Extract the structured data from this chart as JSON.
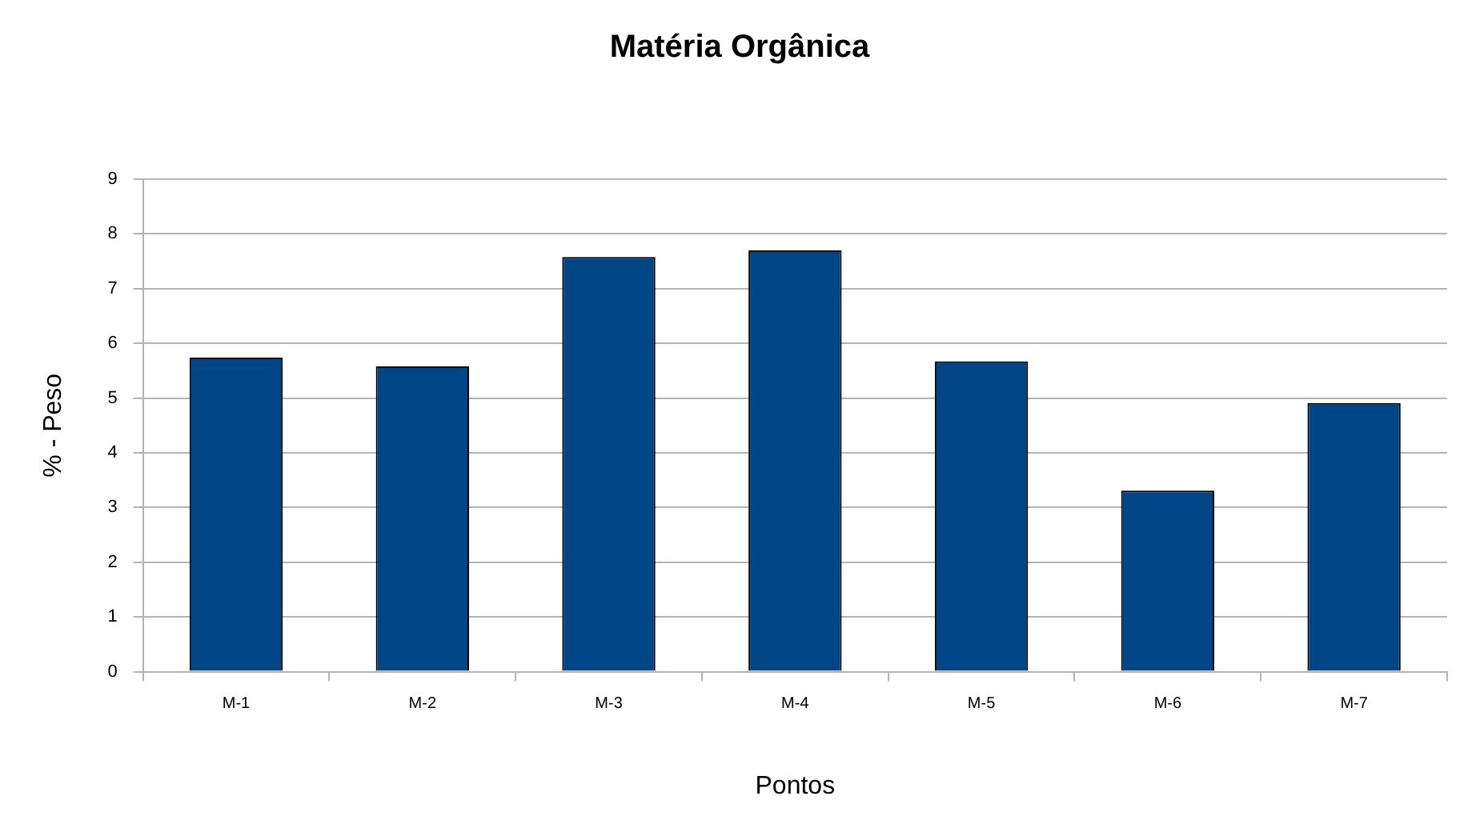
{
  "chart_data": {
    "type": "bar",
    "title": "Matéria Orgânica",
    "xlabel": "Pontos",
    "ylabel": "% - Peso",
    "categories": [
      "M-1",
      "M-2",
      "M-3",
      "M-4",
      "M-5",
      "M-6",
      "M-7"
    ],
    "series": [
      {
        "color": "#004586",
        "values": [
          5.74,
          5.58,
          7.58,
          7.7,
          5.67,
          3.31,
          4.91
        ]
      }
    ],
    "ylim": [
      0,
      9
    ],
    "yticks": [
      0,
      1,
      2,
      3,
      4,
      5,
      6,
      7,
      8,
      9
    ],
    "grid": "y",
    "legend": false
  }
}
